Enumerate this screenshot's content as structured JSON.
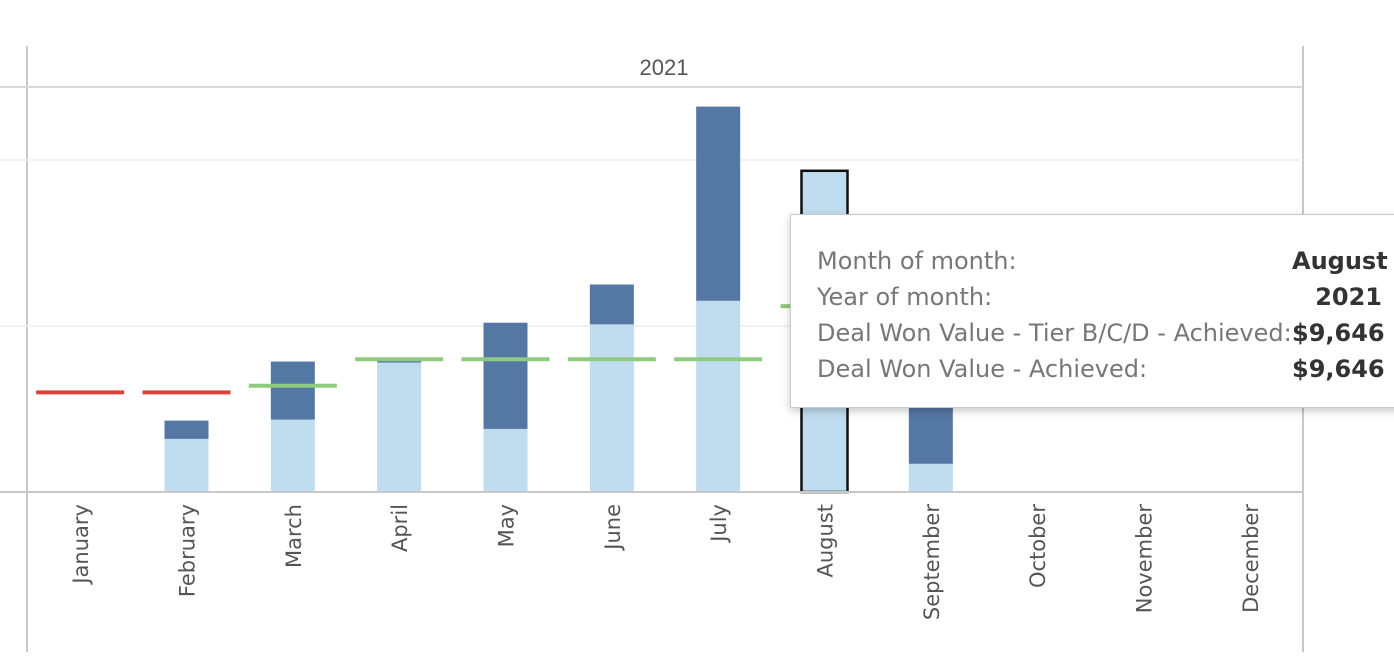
{
  "chart_data": {
    "type": "bar",
    "stacked": true,
    "pane_header": "2021",
    "categories": [
      "January",
      "February",
      "March",
      "April",
      "May",
      "June",
      "July",
      "August",
      "September",
      "October",
      "November",
      "December"
    ],
    "series": [
      {
        "values": [
          0,
          1600,
          2180,
          3900,
          1900,
          5050,
          5760,
          9646,
          850,
          0,
          0,
          0
        ],
        "color": "#c0ddef"
      },
      {
        "values": [
          0,
          550,
          1750,
          50,
          3200,
          1200,
          5850,
          0,
          2300,
          0,
          0,
          0
        ],
        "color": "#5577a3"
      }
    ],
    "reference_lines": [
      {
        "values": [
          3000,
          3000,
          3200,
          4000,
          4000,
          4000,
          4000,
          5600,
          null,
          null,
          null,
          null
        ],
        "colors": [
          "#d9443a",
          "#d9443a",
          "#8fcb7e",
          "#8fcb7e",
          "#8fcb7e",
          "#8fcb7e",
          "#8fcb7e",
          "#8fcb7e",
          null,
          null,
          null,
          null
        ]
      }
    ],
    "ylim": [
      0,
      12200
    ],
    "gridlines": [
      5000,
      10000
    ],
    "highlighted_category": "August",
    "grid": true
  },
  "tooltip": {
    "rows": [
      {
        "label": "Month of month:",
        "value": "August"
      },
      {
        "label": "Year of month:",
        "value": "2021"
      },
      {
        "label": "Deal Won Value - Tier B/C/D - Achieved:",
        "value": "$9,646"
      },
      {
        "label": "Deal Won Value - Achieved:",
        "value": "$9,646"
      }
    ]
  }
}
